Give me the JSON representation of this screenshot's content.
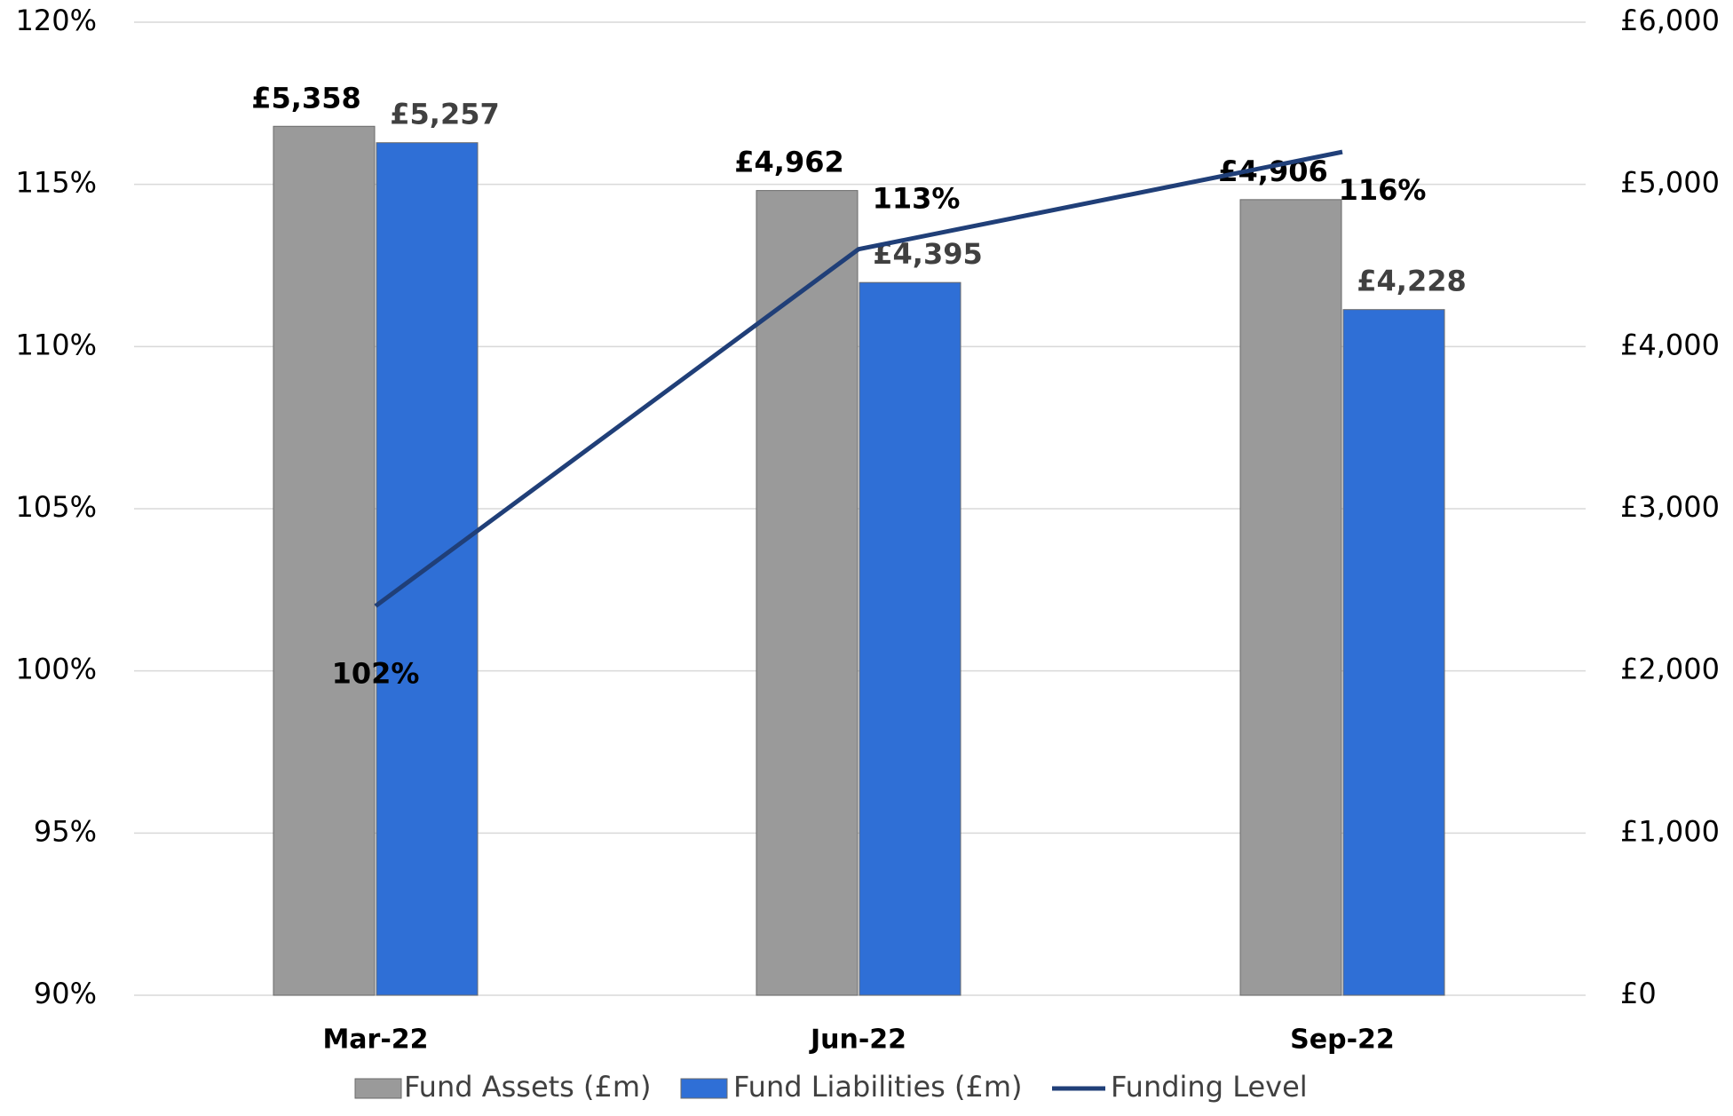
{
  "chart_data": {
    "type": "bar_line",
    "categories": [
      "Mar-22",
      "Jun-22",
      "Sep-22"
    ],
    "series": [
      {
        "name": "Fund Assets (£m)",
        "type": "bar",
        "axis": "y2",
        "color": "#9a9a9a",
        "values": [
          5358,
          4962,
          4906
        ],
        "value_labels": [
          "£5,358",
          "£4,962",
          "£4,906"
        ],
        "label_color": "#000000"
      },
      {
        "name": "Fund Liabilities (£m)",
        "type": "bar",
        "axis": "y2",
        "color": "#2f6fd6",
        "values": [
          5257,
          4395,
          4228
        ],
        "value_labels": [
          "£5,257",
          "£4,395",
          "£4,228"
        ],
        "label_color": "#404040"
      },
      {
        "name": "Funding Level",
        "type": "line",
        "axis": "y",
        "color": "#203f78",
        "values": [
          102,
          113,
          116
        ],
        "value_labels": [
          "102%",
          "113%",
          "116%"
        ],
        "label_color": "#000000"
      }
    ],
    "ylim": [
      90,
      120
    ],
    "yticks": [
      {
        "value": 90,
        "label": "90%"
      },
      {
        "value": 95,
        "label": "95%"
      },
      {
        "value": 100,
        "label": "100%"
      },
      {
        "value": 105,
        "label": "105%"
      },
      {
        "value": 110,
        "label": "110%"
      },
      {
        "value": 115,
        "label": "115%"
      },
      {
        "value": 120,
        "label": "120%"
      }
    ],
    "y2lim": [
      0,
      6000
    ],
    "y2ticks": [
      {
        "value": 0,
        "label": "£0"
      },
      {
        "value": 1000,
        "label": "£1,000"
      },
      {
        "value": 2000,
        "label": "£2,000"
      },
      {
        "value": 3000,
        "label": "£3,000"
      },
      {
        "value": 4000,
        "label": "£4,000"
      },
      {
        "value": 5000,
        "label": "£5,000"
      },
      {
        "value": 6000,
        "label": "£6,000"
      }
    ],
    "grid": true,
    "legend": "bottom"
  }
}
